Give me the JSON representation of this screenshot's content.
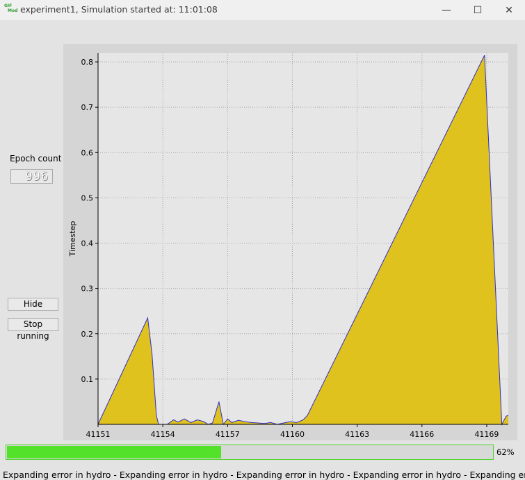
{
  "window": {
    "title": "experiment1, Simulation started at: 11:01:08",
    "logo_top": "GIF",
    "logo_bottom": "Mod",
    "minimize_glyph": "—",
    "maximize_glyph": "☐",
    "close_glyph": "✕"
  },
  "sidebar": {
    "epoch_label": "Epoch count",
    "epoch_value": "996",
    "hide_label": "Hide",
    "stop_label": "Stop running"
  },
  "progress": {
    "percent": 62,
    "label": "62%"
  },
  "status": {
    "text": "Expanding error in hydro - Expanding error in hydro - Expanding error in hydro - Expanding error in hydro - Expanding error in hydro - Expanding error in hydro - Expanding error in hydro - Expan..."
  },
  "colors": {
    "fill": "#dfc21e",
    "line": "#2f2fc8",
    "progress": "#54e12a"
  },
  "chart_data": {
    "type": "area",
    "title": "",
    "xlabel": "",
    "ylabel": "Timestep",
    "xlim": [
      41151,
      41170
    ],
    "ylim": [
      0,
      0.82
    ],
    "x_ticks": [
      41151,
      41154,
      41157,
      41160,
      41163,
      41166,
      41169
    ],
    "y_ticks": [
      0.1,
      0.2,
      0.3,
      0.4,
      0.5,
      0.6,
      0.7,
      0.8
    ],
    "grid": true,
    "series": [
      {
        "name": "Timestep",
        "x": [
          41151.0,
          41153.3,
          41153.5,
          41153.7,
          41153.8,
          41154.2,
          41154.5,
          41154.7,
          41155.0,
          41155.3,
          41155.6,
          41155.9,
          41156.1,
          41156.3,
          41156.6,
          41156.8,
          41157.0,
          41157.2,
          41157.5,
          41157.8,
          41158.1,
          41158.4,
          41158.7,
          41159.0,
          41159.3,
          41159.6,
          41159.9,
          41160.2,
          41160.5,
          41160.7,
          41168.9,
          41169.7,
          41169.9,
          41170.0
        ],
        "values": [
          0.0,
          0.235,
          0.155,
          0.02,
          0.0,
          0.0,
          0.01,
          0.005,
          0.012,
          0.004,
          0.01,
          0.006,
          0.0,
          0.003,
          0.05,
          0.0,
          0.012,
          0.004,
          0.009,
          0.006,
          0.004,
          0.003,
          0.002,
          0.004,
          0.0,
          0.003,
          0.006,
          0.004,
          0.01,
          0.02,
          0.815,
          0.0,
          0.018,
          0.02
        ]
      }
    ]
  }
}
